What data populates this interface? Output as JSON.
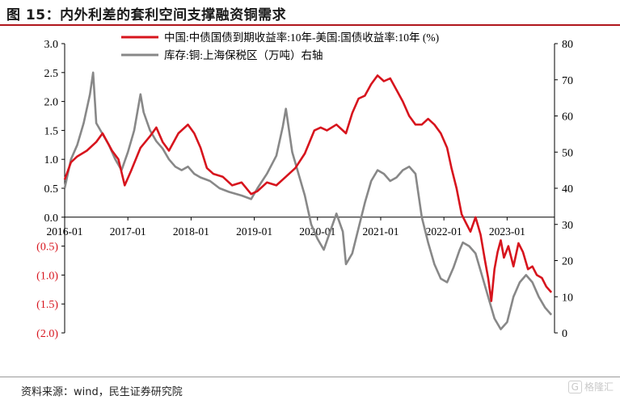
{
  "figure_title": "图 15：内外利差的套利空间支撑融资铜需求",
  "source_note": "资料来源：wind，民生证券研究院",
  "watermark": {
    "icon": "G",
    "text": "格隆汇"
  },
  "colors": {
    "title_rule": "#b0151c",
    "series_red": "#d7141d",
    "series_gray": "#888888"
  },
  "chart_data": {
    "type": "line",
    "title": "",
    "x_tick_labels": [
      "2016-01",
      "2017-01",
      "2018-01",
      "2019-01",
      "2020-01",
      "2021-01",
      "2022-01",
      "2023-01"
    ],
    "x_range": [
      2016.0,
      2023.75
    ],
    "left_axis": {
      "ylim": [
        -2.0,
        3.0
      ],
      "tick_labels": [
        "3.0",
        "2.5",
        "2.0",
        "1.5",
        "1.0",
        "0.5",
        "0.0",
        "(0.5)",
        "(1.0)",
        "(1.5)",
        "(2.0)"
      ],
      "tick_values": [
        3.0,
        2.5,
        2.0,
        1.5,
        1.0,
        0.5,
        0.0,
        -0.5,
        -1.0,
        -1.5,
        -2.0
      ]
    },
    "right_axis": {
      "ylim": [
        0,
        80
      ],
      "tick_labels": [
        "80",
        "70",
        "60",
        "50",
        "40",
        "30",
        "20",
        "10",
        "0"
      ],
      "tick_values": [
        80,
        70,
        60,
        50,
        40,
        30,
        20,
        10,
        0
      ]
    },
    "grid": false,
    "legend_position": "top",
    "series": [
      {
        "name": "中国:中债国债到期收益率:10年-美国:国债收益率:10年  (%)",
        "axis": "left",
        "color": "#d7141d",
        "points": [
          [
            2016.0,
            0.65
          ],
          [
            2016.1,
            0.95
          ],
          [
            2016.2,
            1.05
          ],
          [
            2016.35,
            1.15
          ],
          [
            2016.5,
            1.3
          ],
          [
            2016.6,
            1.45
          ],
          [
            2016.75,
            1.15
          ],
          [
            2016.85,
            1.0
          ],
          [
            2016.95,
            0.55
          ],
          [
            2017.05,
            0.8
          ],
          [
            2017.2,
            1.2
          ],
          [
            2017.35,
            1.4
          ],
          [
            2017.45,
            1.55
          ],
          [
            2017.55,
            1.3
          ],
          [
            2017.65,
            1.15
          ],
          [
            2017.8,
            1.45
          ],
          [
            2017.95,
            1.6
          ],
          [
            2018.05,
            1.45
          ],
          [
            2018.15,
            1.2
          ],
          [
            2018.25,
            0.85
          ],
          [
            2018.35,
            0.75
          ],
          [
            2018.5,
            0.7
          ],
          [
            2018.65,
            0.55
          ],
          [
            2018.8,
            0.6
          ],
          [
            2018.95,
            0.4
          ],
          [
            2019.05,
            0.45
          ],
          [
            2019.2,
            0.6
          ],
          [
            2019.35,
            0.55
          ],
          [
            2019.5,
            0.7
          ],
          [
            2019.65,
            0.85
          ],
          [
            2019.8,
            1.1
          ],
          [
            2019.95,
            1.5
          ],
          [
            2020.05,
            1.55
          ],
          [
            2020.15,
            1.5
          ],
          [
            2020.3,
            1.6
          ],
          [
            2020.45,
            1.45
          ],
          [
            2020.55,
            1.8
          ],
          [
            2020.65,
            2.05
          ],
          [
            2020.75,
            2.1
          ],
          [
            2020.85,
            2.3
          ],
          [
            2020.95,
            2.45
          ],
          [
            2021.05,
            2.35
          ],
          [
            2021.15,
            2.4
          ],
          [
            2021.25,
            2.2
          ],
          [
            2021.35,
            2.0
          ],
          [
            2021.45,
            1.75
          ],
          [
            2021.55,
            1.6
          ],
          [
            2021.65,
            1.6
          ],
          [
            2021.75,
            1.7
          ],
          [
            2021.85,
            1.6
          ],
          [
            2021.95,
            1.45
          ],
          [
            2022.05,
            1.2
          ],
          [
            2022.12,
            0.85
          ],
          [
            2022.2,
            0.5
          ],
          [
            2022.28,
            0.05
          ],
          [
            2022.35,
            -0.1
          ],
          [
            2022.42,
            -0.25
          ],
          [
            2022.5,
            0.0
          ],
          [
            2022.58,
            -0.3
          ],
          [
            2022.65,
            -0.75
          ],
          [
            2022.7,
            -1.05
          ],
          [
            2022.75,
            -1.45
          ],
          [
            2022.8,
            -0.9
          ],
          [
            2022.85,
            -0.6
          ],
          [
            2022.9,
            -0.4
          ],
          [
            2022.95,
            -0.7
          ],
          [
            2023.02,
            -0.5
          ],
          [
            2023.1,
            -0.85
          ],
          [
            2023.18,
            -0.45
          ],
          [
            2023.25,
            -0.6
          ],
          [
            2023.33,
            -0.9
          ],
          [
            2023.4,
            -0.85
          ],
          [
            2023.47,
            -1.0
          ],
          [
            2023.55,
            -1.05
          ],
          [
            2023.62,
            -1.2
          ],
          [
            2023.7,
            -1.3
          ]
        ]
      },
      {
        "name": "库存:铜:上海保税区（万吨）右轴",
        "axis": "right",
        "color": "#888888",
        "points": [
          [
            2016.0,
            40
          ],
          [
            2016.1,
            48
          ],
          [
            2016.2,
            52
          ],
          [
            2016.3,
            58
          ],
          [
            2016.4,
            66
          ],
          [
            2016.45,
            72
          ],
          [
            2016.5,
            58
          ],
          [
            2016.6,
            55
          ],
          [
            2016.7,
            52
          ],
          [
            2016.8,
            48
          ],
          [
            2016.9,
            45
          ],
          [
            2017.0,
            50
          ],
          [
            2017.1,
            56
          ],
          [
            2017.2,
            66
          ],
          [
            2017.25,
            61
          ],
          [
            2017.35,
            56
          ],
          [
            2017.45,
            53
          ],
          [
            2017.55,
            51
          ],
          [
            2017.65,
            48
          ],
          [
            2017.75,
            46
          ],
          [
            2017.85,
            45
          ],
          [
            2017.95,
            46
          ],
          [
            2018.05,
            44
          ],
          [
            2018.15,
            43
          ],
          [
            2018.3,
            42
          ],
          [
            2018.45,
            40
          ],
          [
            2018.6,
            39
          ],
          [
            2018.8,
            38
          ],
          [
            2018.95,
            37
          ],
          [
            2019.05,
            40
          ],
          [
            2019.2,
            44
          ],
          [
            2019.35,
            49
          ],
          [
            2019.45,
            57
          ],
          [
            2019.5,
            62
          ],
          [
            2019.6,
            50
          ],
          [
            2019.7,
            44
          ],
          [
            2019.8,
            38
          ],
          [
            2019.9,
            30
          ],
          [
            2020.0,
            26
          ],
          [
            2020.1,
            23
          ],
          [
            2020.2,
            28
          ],
          [
            2020.3,
            33
          ],
          [
            2020.4,
            28
          ],
          [
            2020.45,
            19
          ],
          [
            2020.55,
            22
          ],
          [
            2020.65,
            29
          ],
          [
            2020.75,
            36
          ],
          [
            2020.85,
            42
          ],
          [
            2020.95,
            45
          ],
          [
            2021.05,
            44
          ],
          [
            2021.15,
            42
          ],
          [
            2021.25,
            43
          ],
          [
            2021.35,
            45
          ],
          [
            2021.45,
            46
          ],
          [
            2021.55,
            44
          ],
          [
            2021.65,
            32
          ],
          [
            2021.75,
            25
          ],
          [
            2021.85,
            19
          ],
          [
            2021.95,
            15
          ],
          [
            2022.05,
            14
          ],
          [
            2022.15,
            18
          ],
          [
            2022.25,
            23
          ],
          [
            2022.3,
            25
          ],
          [
            2022.4,
            24
          ],
          [
            2022.5,
            22
          ],
          [
            2022.6,
            16
          ],
          [
            2022.7,
            10
          ],
          [
            2022.8,
            4
          ],
          [
            2022.9,
            1
          ],
          [
            2023.0,
            3
          ],
          [
            2023.1,
            10
          ],
          [
            2023.2,
            14
          ],
          [
            2023.3,
            16
          ],
          [
            2023.4,
            14
          ],
          [
            2023.5,
            10
          ],
          [
            2023.6,
            7
          ],
          [
            2023.7,
            5
          ]
        ]
      }
    ]
  }
}
